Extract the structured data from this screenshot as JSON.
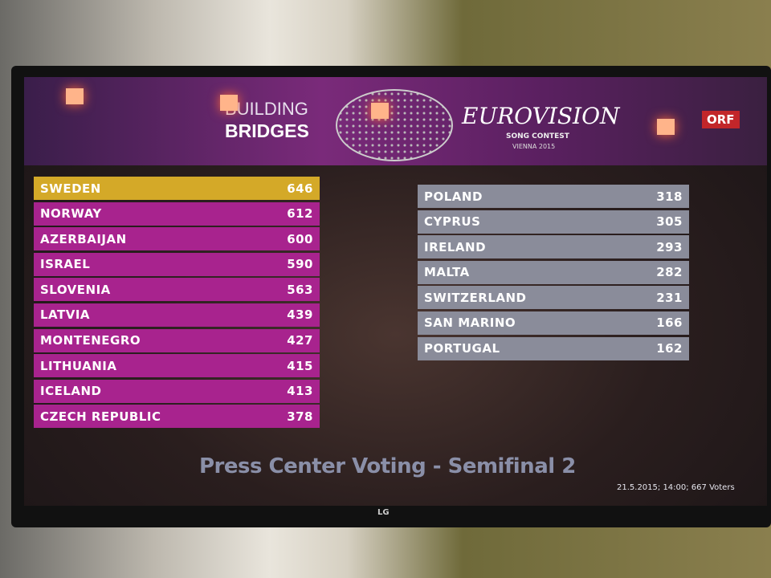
{
  "header": {
    "building": "BUILDING",
    "bridges": "BRIDGES",
    "logo_euro": "EUROVISION",
    "logo_song": "SONG CONTEST",
    "logo_city": "VIENNA 2015",
    "broadcaster": "ORF"
  },
  "left_table": [
    {
      "country": "SWEDEN",
      "score": "646"
    },
    {
      "country": "NORWAY",
      "score": "612"
    },
    {
      "country": "AZERBAIJAN",
      "score": "600"
    },
    {
      "country": "ISRAEL",
      "score": "590"
    },
    {
      "country": "SLOVENIA",
      "score": "563"
    },
    {
      "country": "LATVIA",
      "score": "439"
    },
    {
      "country": "MONTENEGRO",
      "score": "427"
    },
    {
      "country": "LITHUANIA",
      "score": "415"
    },
    {
      "country": "ICELAND",
      "score": "413"
    },
    {
      "country": "CZECH REPUBLIC",
      "score": "378"
    }
  ],
  "right_table": [
    {
      "country": "POLAND",
      "score": "318"
    },
    {
      "country": "CYPRUS",
      "score": "305"
    },
    {
      "country": "IRELAND",
      "score": "293"
    },
    {
      "country": "MALTA",
      "score": "282"
    },
    {
      "country": "SWITZERLAND",
      "score": "231"
    },
    {
      "country": "SAN MARINO",
      "score": "166"
    },
    {
      "country": "PORTUGAL",
      "score": "162"
    }
  ],
  "footer": {
    "title": "Press Center Voting - Semifinal 2",
    "meta": "21.5.2015; 14:00; 667 Voters"
  },
  "tv_brand": "LG",
  "colors": {
    "qualifier": "#a8238e",
    "leader": "#d4a928",
    "non_qualifier": "#8a8c9a"
  }
}
